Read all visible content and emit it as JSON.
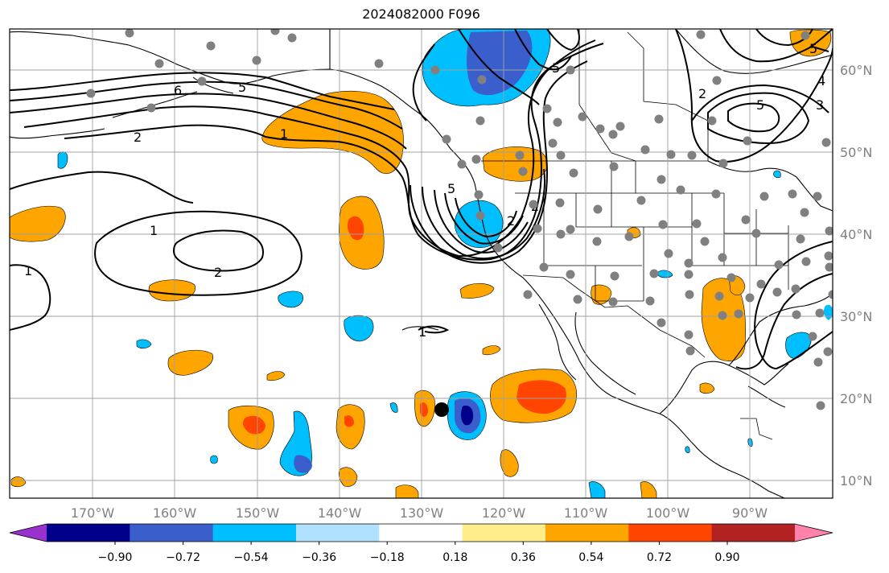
{
  "title": "2024082000 F096",
  "longitude_labels": [
    "170°W",
    "160°W",
    "150°W",
    "140°W",
    "130°W",
    "120°W",
    "110°W",
    "100°W",
    "90°W"
  ],
  "latitude_labels": [
    "60°N",
    "50°N",
    "40°N",
    "30°N",
    "20°N",
    "10°N"
  ],
  "colorbar": {
    "ticks": [
      "−0.90",
      "−0.72",
      "−0.54",
      "−0.36",
      "−0.18",
      "0.18",
      "0.36",
      "0.54",
      "0.72",
      "0.90"
    ],
    "colors": [
      "#9932cc",
      "#00008b",
      "#3a5fcd",
      "#00bfff",
      "#b0e2ff",
      "#ffffff",
      "#ffec8b",
      "#ffa500",
      "#ff4500",
      "#b22222",
      "#ff82ab"
    ]
  },
  "contour_labels": [
    "6",
    "5",
    "2",
    "1",
    "1",
    "2",
    "1",
    "5",
    "2",
    "5",
    "3",
    "4",
    "5",
    "1",
    "2",
    "2",
    "5"
  ]
}
